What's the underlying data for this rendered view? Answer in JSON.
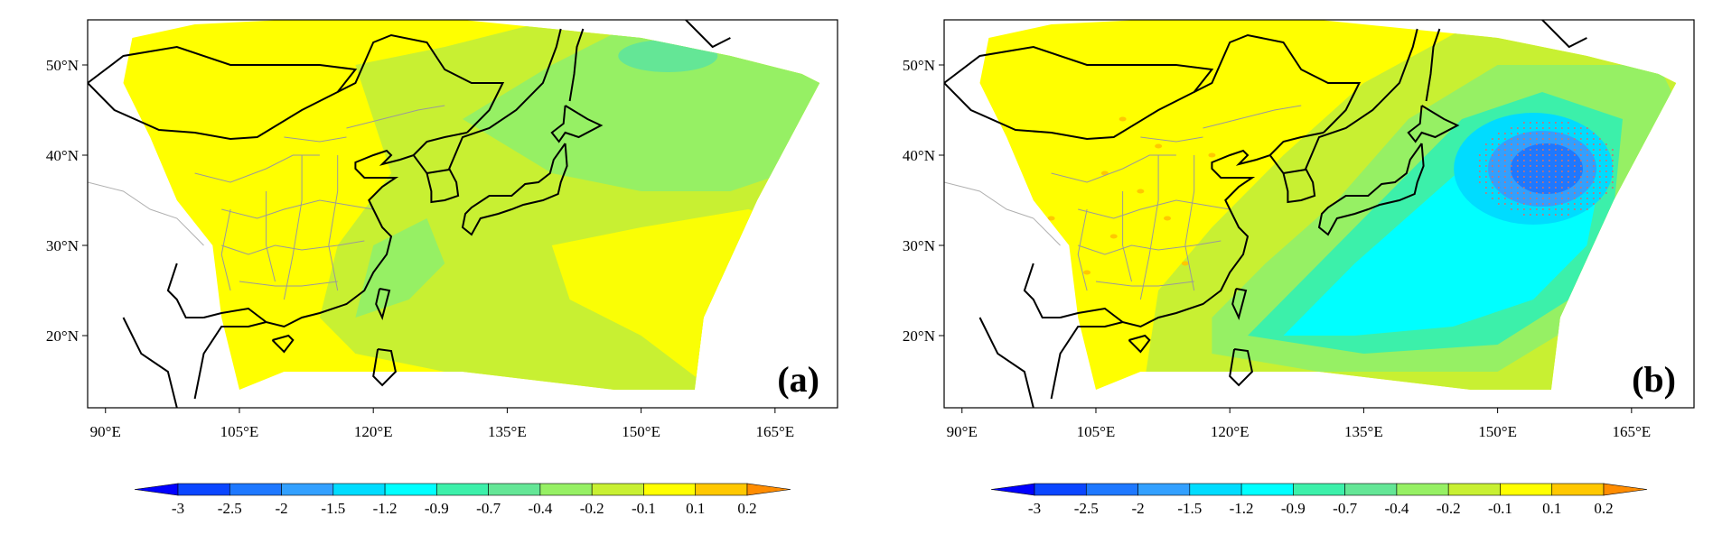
{
  "panels": [
    {
      "label": "(a)",
      "lat_labels": [
        "50°N",
        "40°N",
        "30°N",
        "20°N"
      ],
      "lat_values": [
        50,
        40,
        30,
        20
      ],
      "lon_labels": [
        "90°E",
        "105°E",
        "120°E",
        "135°E",
        "150°E",
        "165°E"
      ],
      "lon_values": [
        90,
        105,
        120,
        135,
        150,
        165
      ],
      "colorbar_labels": [
        "-3",
        "-2.5",
        "-2",
        "-1.5",
        "-1.2",
        "-0.9",
        "-0.7",
        "-0.4",
        "-0.2",
        "-0.1",
        "0.1",
        "0.2"
      ]
    },
    {
      "label": "(b)",
      "lat_labels": [
        "50°N",
        "40°N",
        "30°N",
        "20°N"
      ],
      "lat_values": [
        50,
        40,
        30,
        20
      ],
      "lon_labels": [
        "90°E",
        "105°E",
        "120°E",
        "135°E",
        "150°E",
        "165°E"
      ],
      "lon_values": [
        90,
        105,
        120,
        135,
        150,
        165
      ],
      "colorbar_labels": [
        "-3",
        "-2.5",
        "-2",
        "-1.5",
        "-1.2",
        "-0.9",
        "-0.7",
        "-0.4",
        "-0.2",
        "-0.1",
        "0.1",
        "0.2"
      ]
    }
  ],
  "colorbar_colors": [
    "#0000ff",
    "#0a46ff",
    "#1e78ff",
    "#32a0ff",
    "#00dcff",
    "#00ffff",
    "#3cf0aa",
    "#64e696",
    "#96f064",
    "#c8f032",
    "#ffff00",
    "#ffc800",
    "#ff8c00"
  ],
  "map_extent": {
    "lon_min": 88,
    "lon_max": 172,
    "lat_min": 12,
    "lat_max": 55
  },
  "background_color": "#ffffff"
}
